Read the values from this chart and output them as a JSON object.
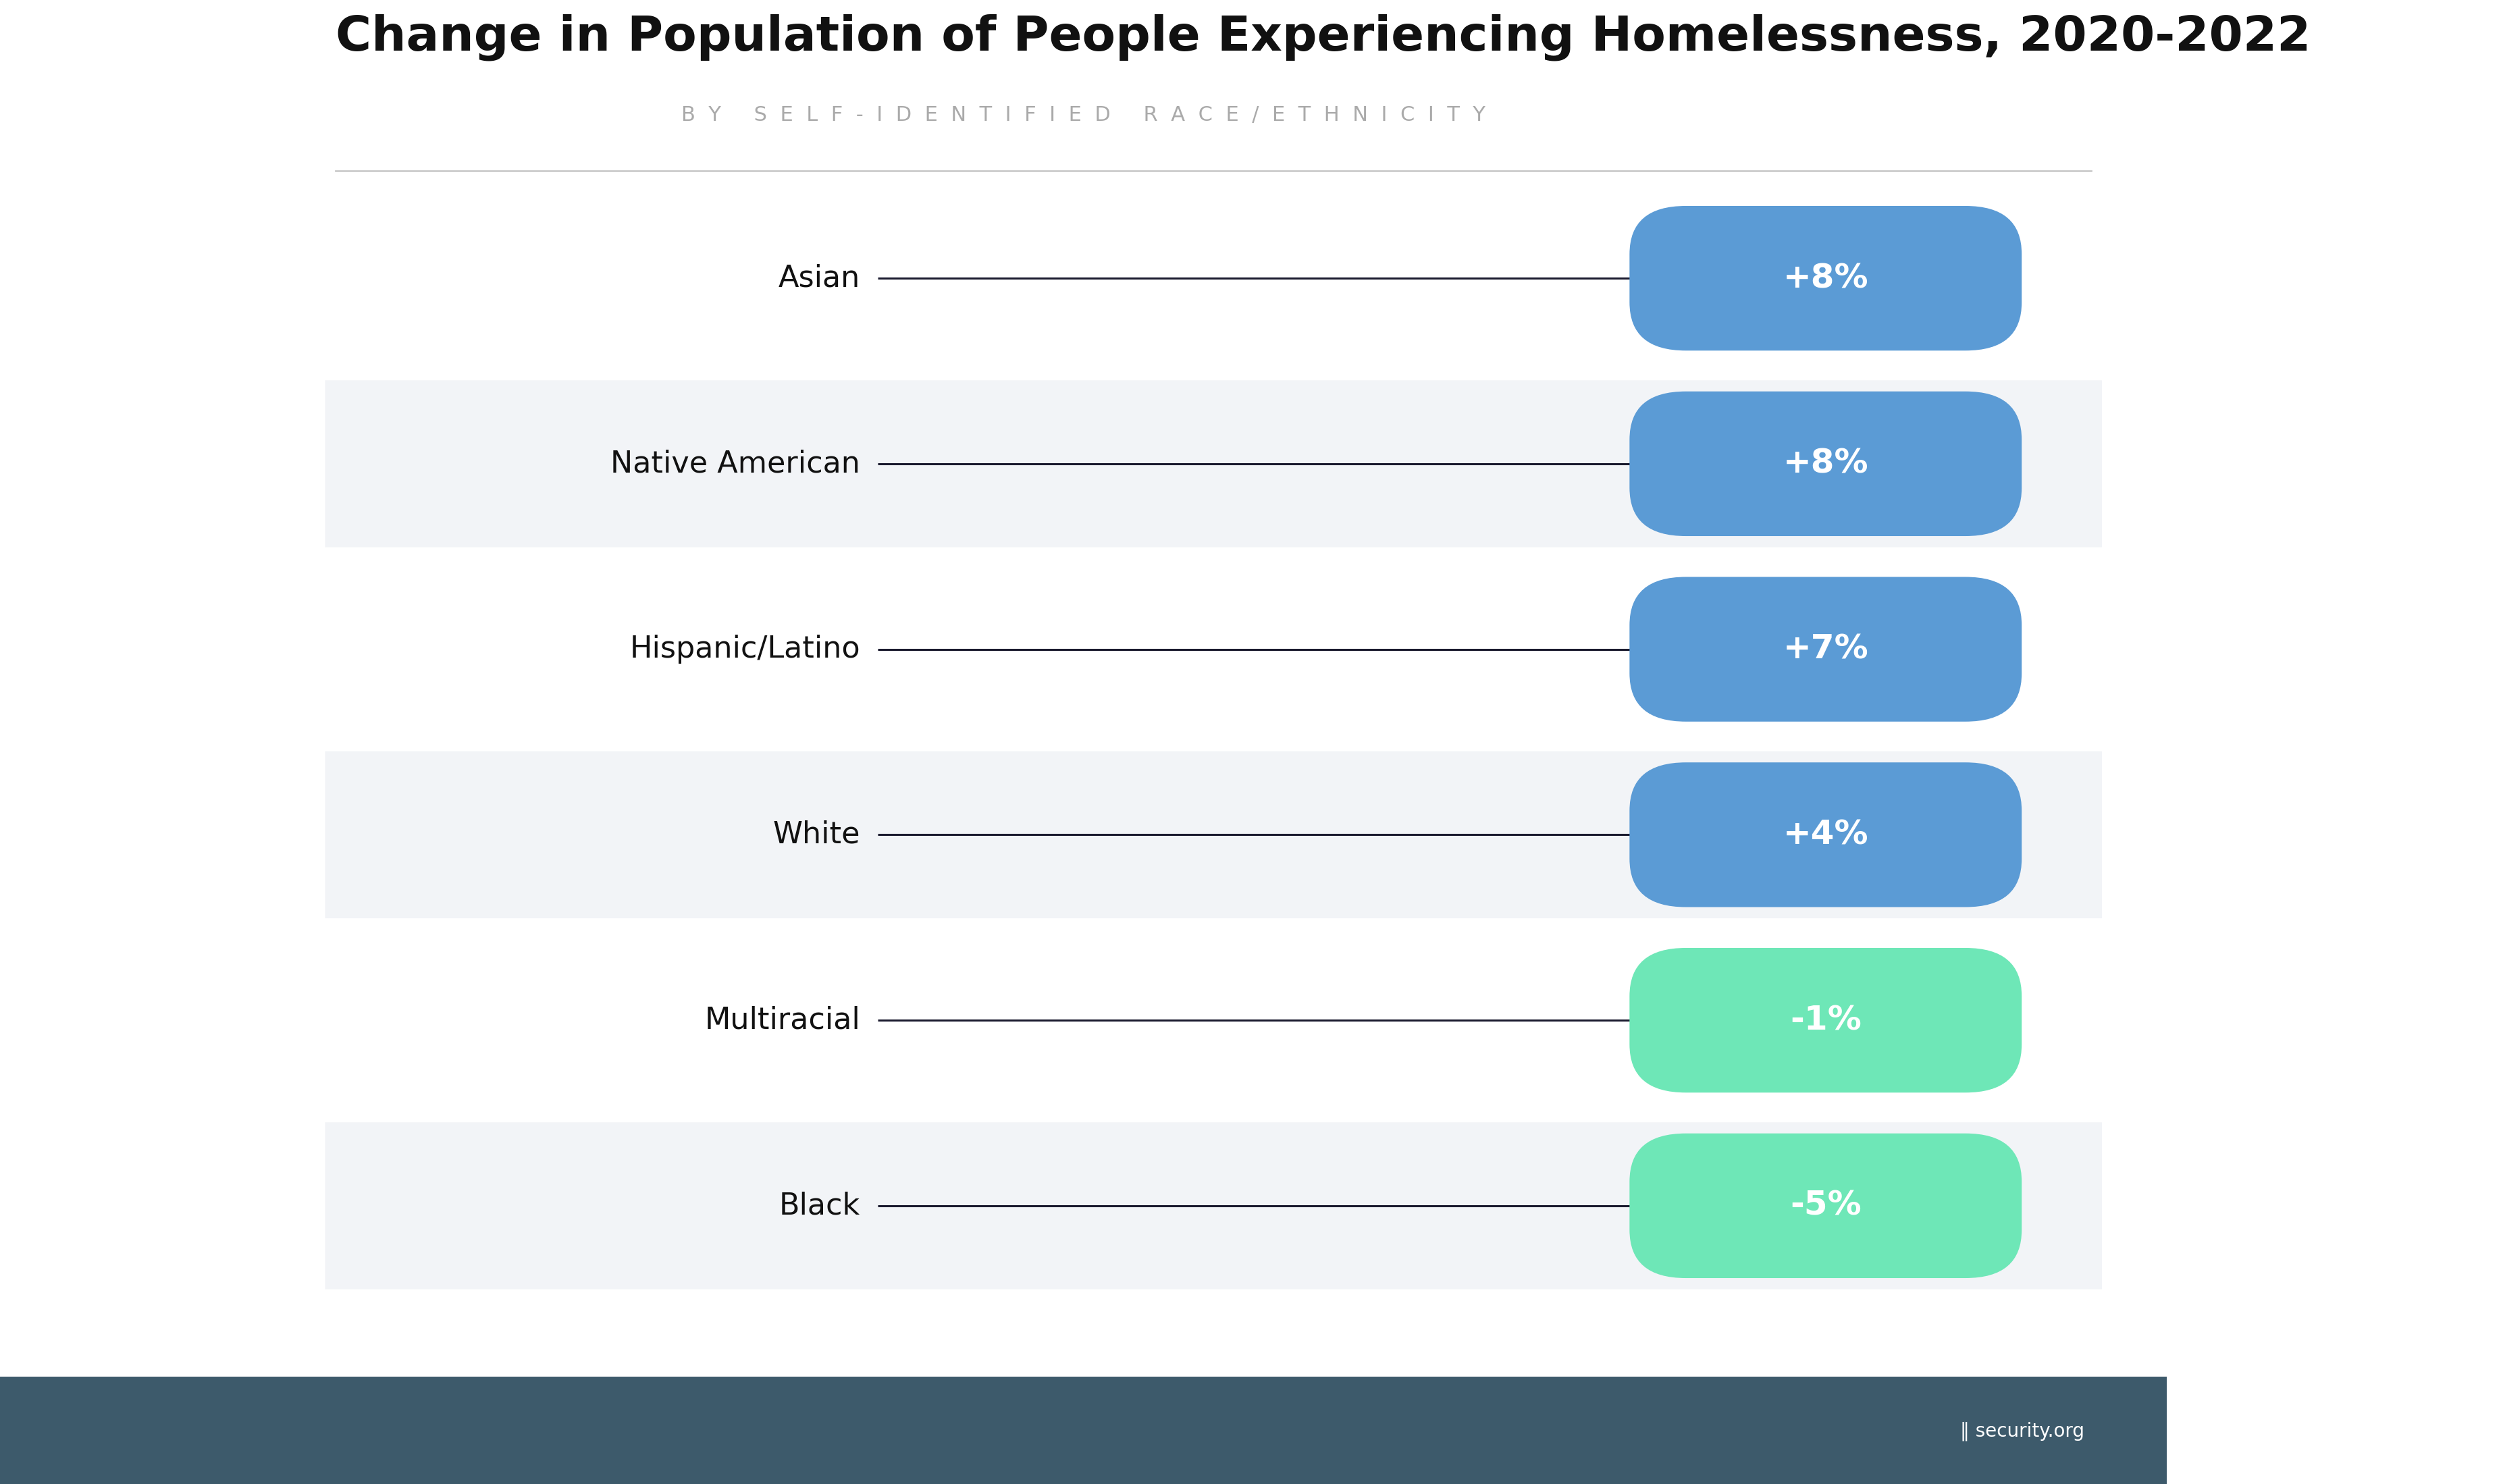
{
  "title": "Change in Population of People Experiencing Homelessness, 2020-2022",
  "subtitle": "BY SELF-IDENTIFIED RACE/ETHNICITY",
  "categories": [
    "Asian",
    "Native American",
    "Hispanic/Latino",
    "White",
    "Multiracial",
    "Black"
  ],
  "values": [
    8,
    8,
    7,
    4,
    -1,
    -5
  ],
  "labels": [
    "+8%",
    "+8%",
    "+7%",
    "+4%",
    "-1%",
    "-5%"
  ],
  "positive_color": "#5B9BD5",
  "negative_color": "#6EE7B7",
  "dot_color": "#1a1a2e",
  "line_color": "#1a1a2e",
  "bg_color": "#ffffff",
  "stripe_color": "#f2f4f7",
  "title_fontsize": 52,
  "subtitle_fontsize": 22,
  "label_fontsize": 32,
  "tag_fontsize": 36,
  "footer_bg": "#3d5a6b"
}
